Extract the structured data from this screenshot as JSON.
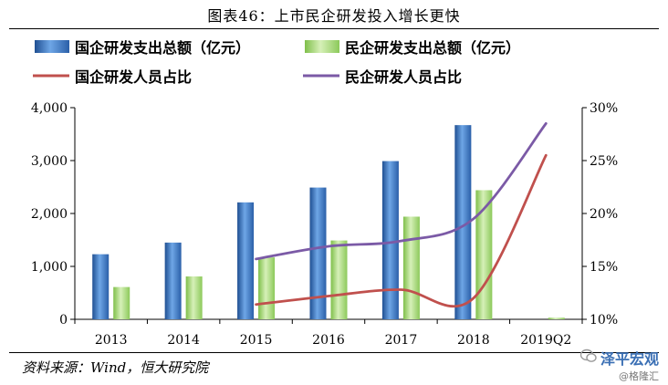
{
  "title": "图表46：上市民企研发投入增长更快",
  "source": "资料来源：Wind，恒大研究院",
  "watermark": {
    "main": "泽平宏观",
    "sub": "@格隆汇"
  },
  "chart_data": {
    "type": "bar",
    "categories": [
      "2013",
      "2014",
      "2015",
      "2016",
      "2017",
      "2018",
      "2019Q2"
    ],
    "series": [
      {
        "name": "国企研发支出总额（亿元）",
        "kind": "bar",
        "axis": "left",
        "color": "#3b78c4",
        "values": [
          1230,
          1450,
          2210,
          2490,
          2990,
          3670,
          null
        ]
      },
      {
        "name": "民企研发支出总额（亿元）",
        "kind": "bar",
        "axis": "left",
        "color": "#9ed36b",
        "values": [
          610,
          810,
          1170,
          1490,
          1940,
          2440,
          30
        ]
      },
      {
        "name": "国企研发人员占比",
        "kind": "line",
        "axis": "right",
        "color": "#c0504d",
        "values": [
          null,
          null,
          11.4,
          12.2,
          12.8,
          12.0,
          25.5
        ]
      },
      {
        "name": "民企研发人员占比",
        "kind": "line",
        "axis": "right",
        "color": "#7b5aa6",
        "values": [
          null,
          null,
          15.7,
          16.9,
          17.4,
          19.5,
          28.5
        ]
      }
    ],
    "y_left": {
      "min": 0,
      "max": 4000,
      "ticks": [
        0,
        1000,
        2000,
        3000,
        4000
      ],
      "tick_labels": [
        "0",
        "1,000",
        "2,000",
        "3,000",
        "4,000"
      ]
    },
    "y_right": {
      "min": 10,
      "max": 30,
      "ticks": [
        10,
        15,
        20,
        25,
        30
      ],
      "tick_labels": [
        "10%",
        "15%",
        "20%",
        "25%",
        "30%"
      ]
    },
    "legend_position": "top",
    "grid": false
  }
}
